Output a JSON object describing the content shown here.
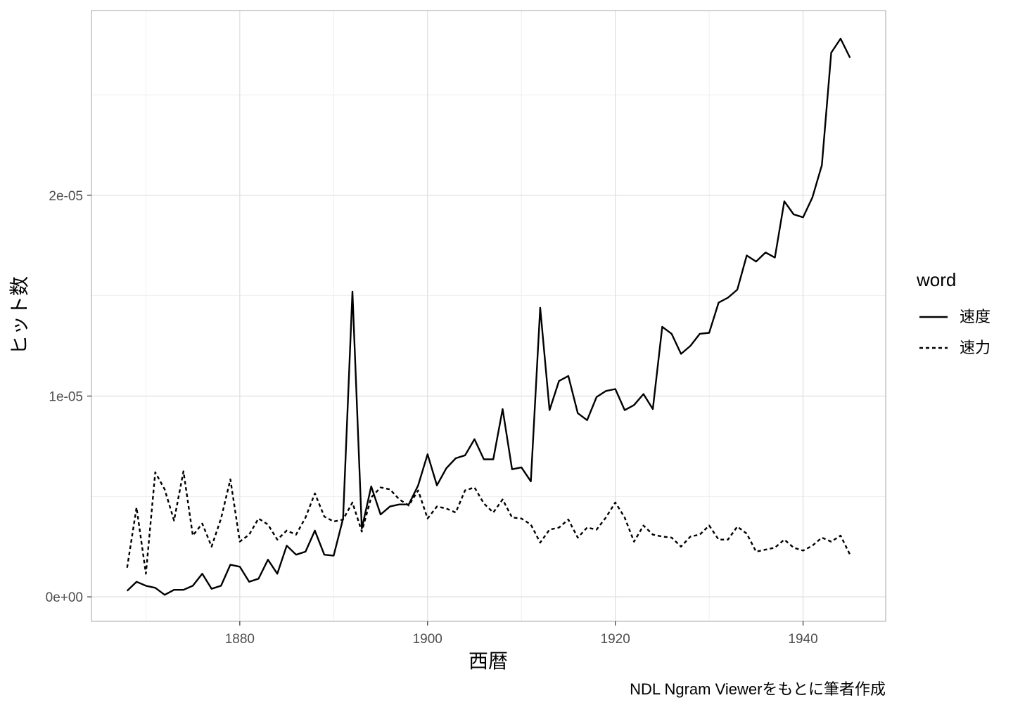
{
  "chart_data": {
    "type": "line",
    "title": "",
    "xlabel": "西暦",
    "ylabel": "ヒット数",
    "caption": "NDL Ngram Viewerをもとに筆者作成",
    "xlim": [
      1864.2,
      1948.8
    ],
    "ylim": [
      -1.22e-06,
      2.92e-05
    ],
    "x_ticks": [
      1880,
      1900,
      1920,
      1940
    ],
    "x_tick_labels": [
      "1880",
      "1900",
      "1920",
      "1940"
    ],
    "y_ticks": [
      0,
      1e-05,
      2e-05
    ],
    "y_tick_labels": [
      "0e+00",
      "1e-05",
      "2e-05"
    ],
    "grid": true,
    "legend": {
      "title": "word",
      "position": "right"
    },
    "x": [
      1868,
      1869,
      1870,
      1871,
      1872,
      1873,
      1874,
      1875,
      1876,
      1877,
      1878,
      1879,
      1880,
      1881,
      1882,
      1883,
      1884,
      1885,
      1886,
      1887,
      1888,
      1889,
      1890,
      1891,
      1892,
      1893,
      1894,
      1895,
      1896,
      1897,
      1898,
      1899,
      1900,
      1901,
      1902,
      1903,
      1904,
      1905,
      1906,
      1907,
      1908,
      1909,
      1910,
      1911,
      1912,
      1913,
      1914,
      1915,
      1916,
      1917,
      1918,
      1919,
      1920,
      1921,
      1922,
      1923,
      1924,
      1925,
      1926,
      1927,
      1928,
      1929,
      1930,
      1931,
      1932,
      1933,
      1934,
      1935,
      1936,
      1937,
      1938,
      1939,
      1940,
      1941,
      1942,
      1943,
      1944,
      1945
    ],
    "series": [
      {
        "name": "速度",
        "linetype": "solid",
        "values": [
          3e-07,
          7.5e-07,
          5.5e-07,
          4.5e-07,
          1e-07,
          3.5e-07,
          3.5e-07,
          5.5e-07,
          1.15e-06,
          4e-07,
          5.5e-07,
          1.6e-06,
          1.5e-06,
          7.5e-07,
          9e-07,
          1.85e-06,
          1.15e-06,
          2.55e-06,
          2.1e-06,
          2.25e-06,
          3.3e-06,
          2.1e-06,
          2.05e-06,
          3.9e-06,
          1.52e-05,
          3.4e-06,
          5.5e-06,
          4.1e-06,
          4.5e-06,
          4.6e-06,
          4.6e-06,
          5.55e-06,
          7.1e-06,
          5.55e-06,
          6.4e-06,
          6.9e-06,
          7.05e-06,
          7.85e-06,
          6.85e-06,
          6.85e-06,
          9.35e-06,
          6.35e-06,
          6.45e-06,
          5.75e-06,
          1.44e-05,
          9.3e-06,
          1.075e-05,
          1.1e-05,
          9.15e-06,
          8.8e-06,
          9.95e-06,
          1.025e-05,
          1.035e-05,
          9.3e-06,
          9.55e-06,
          1.01e-05,
          9.35e-06,
          1.345e-05,
          1.31e-05,
          1.21e-05,
          1.25e-05,
          1.31e-05,
          1.315e-05,
          1.465e-05,
          1.49e-05,
          1.53e-05,
          1.7e-05,
          1.67e-05,
          1.715e-05,
          1.69e-05,
          1.97e-05,
          1.905e-05,
          1.89e-05,
          1.99e-05,
          2.15e-05,
          2.71e-05,
          2.78e-05,
          2.685e-05
        ]
      },
      {
        "name": "速力",
        "linetype": "dashed",
        "values": [
          1.45e-06,
          4.45e-06,
          1.15e-06,
          6.2e-06,
          5.35e-06,
          3.8e-06,
          6.25e-06,
          3.05e-06,
          3.65e-06,
          2.5e-06,
          3.9e-06,
          5.85e-06,
          2.75e-06,
          3.1e-06,
          3.9e-06,
          3.6e-06,
          2.85e-06,
          3.3e-06,
          3.1e-06,
          3.95e-06,
          5.15e-06,
          4e-06,
          3.75e-06,
          3.85e-06,
          4.7e-06,
          3.25e-06,
          4.95e-06,
          5.45e-06,
          5.35e-06,
          4.85e-06,
          4.55e-06,
          5.3e-06,
          3.9e-06,
          4.5e-06,
          4.4e-06,
          4.2e-06,
          5.3e-06,
          5.45e-06,
          4.65e-06,
          4.2e-06,
          4.85e-06,
          3.95e-06,
          3.9e-06,
          3.6e-06,
          2.7e-06,
          3.35e-06,
          3.45e-06,
          3.85e-06,
          2.95e-06,
          3.45e-06,
          3.35e-06,
          3.95e-06,
          4.7e-06,
          3.95e-06,
          2.75e-06,
          3.55e-06,
          3.1e-06,
          3e-06,
          2.95e-06,
          2.5e-06,
          3e-06,
          3.1e-06,
          3.55e-06,
          2.85e-06,
          2.85e-06,
          3.5e-06,
          3.15e-06,
          2.25e-06,
          2.35e-06,
          2.45e-06,
          2.85e-06,
          2.45e-06,
          2.3e-06,
          2.55e-06,
          2.95e-06,
          2.75e-06,
          3.05e-06,
          2.1e-06
        ]
      }
    ]
  }
}
